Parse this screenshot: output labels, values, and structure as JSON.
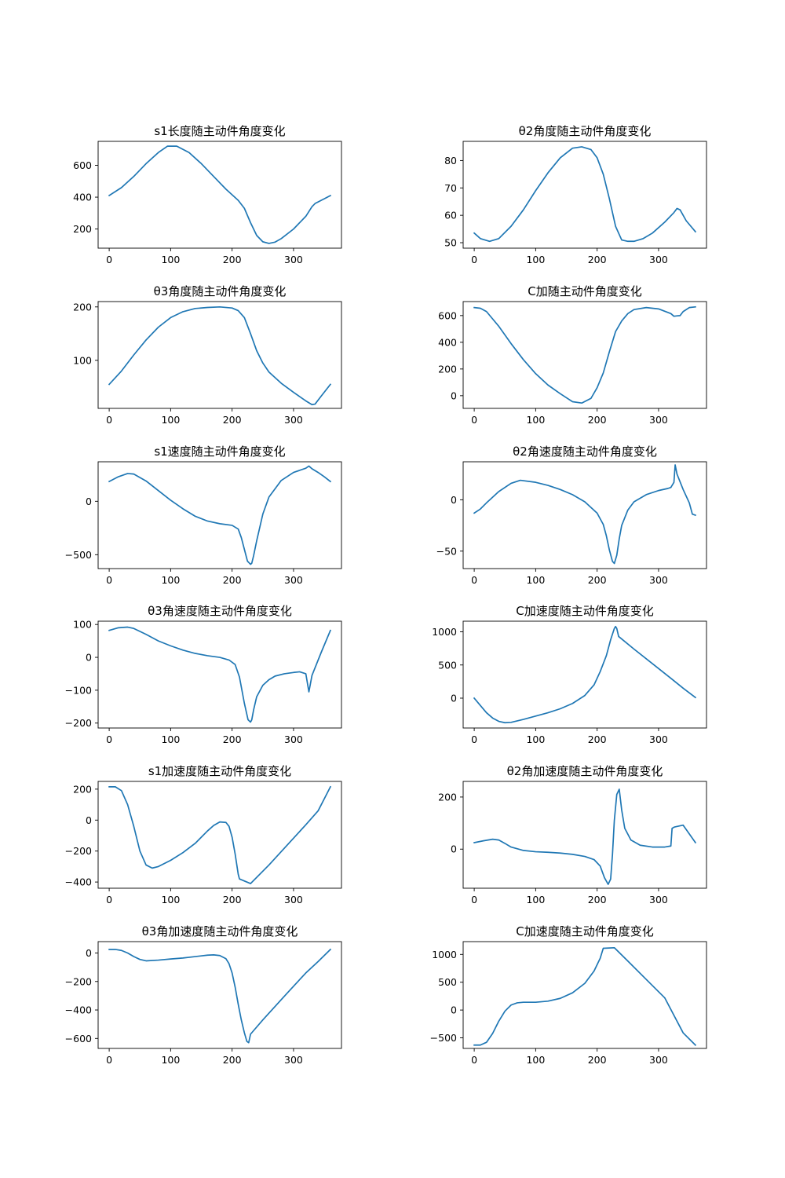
{
  "chart_data": [
    {
      "type": "line",
      "title": "s1长度随主动件角度变化",
      "xlim": [
        -18,
        378
      ],
      "ylim": [
        80,
        750
      ],
      "xticks": [
        0,
        100,
        200,
        300
      ],
      "yticks": [
        200,
        400,
        600
      ],
      "series": [
        {
          "x": [
            0,
            20,
            40,
            60,
            80,
            95,
            110,
            130,
            150,
            170,
            190,
            210,
            220,
            230,
            240,
            250,
            260,
            270,
            280,
            300,
            320,
            330,
            335,
            340,
            350,
            360
          ],
          "y": [
            410,
            460,
            530,
            610,
            680,
            720,
            720,
            680,
            610,
            530,
            450,
            380,
            330,
            240,
            160,
            120,
            110,
            118,
            140,
            200,
            280,
            340,
            360,
            370,
            390,
            410
          ]
        }
      ]
    },
    {
      "type": "line",
      "title": "θ2角度随主动件角度变化",
      "xlim": [
        -18,
        378
      ],
      "ylim": [
        48,
        87
      ],
      "xticks": [
        0,
        100,
        200,
        300
      ],
      "yticks": [
        50,
        60,
        70,
        80
      ],
      "series": [
        {
          "x": [
            0,
            10,
            25,
            40,
            60,
            80,
            100,
            120,
            140,
            160,
            175,
            190,
            200,
            210,
            220,
            230,
            240,
            250,
            260,
            275,
            290,
            310,
            325,
            330,
            335,
            345,
            360
          ],
          "y": [
            53.5,
            51.5,
            50.5,
            51.5,
            56,
            62,
            69,
            75.5,
            81,
            84.5,
            85,
            84,
            81,
            75,
            66,
            56,
            51,
            50.5,
            50.5,
            51.5,
            53.5,
            57.5,
            61,
            62.5,
            62,
            58,
            54
          ]
        }
      ]
    },
    {
      "type": "line",
      "title": "θ3角度随主动件角度变化",
      "xlim": [
        -18,
        378
      ],
      "ylim": [
        10,
        210
      ],
      "xticks": [
        0,
        100,
        200,
        300
      ],
      "yticks": [
        100,
        200
      ],
      "series": [
        {
          "x": [
            0,
            20,
            40,
            60,
            80,
            100,
            120,
            140,
            160,
            180,
            200,
            210,
            220,
            230,
            240,
            250,
            260,
            280,
            300,
            320,
            330,
            335,
            345,
            360
          ],
          "y": [
            55,
            80,
            110,
            138,
            162,
            180,
            191,
            197,
            199,
            200,
            198,
            193,
            180,
            150,
            118,
            95,
            78,
            57,
            40,
            24,
            17,
            18,
            33,
            55
          ]
        }
      ]
    },
    {
      "type": "line",
      "title": "C加随主动件角度变化",
      "xlim": [
        -18,
        378
      ],
      "ylim": [
        -95,
        705
      ],
      "xticks": [
        0,
        100,
        200,
        300
      ],
      "yticks": [
        0,
        200,
        400,
        600
      ],
      "series": [
        {
          "x": [
            0,
            10,
            20,
            40,
            60,
            80,
            100,
            120,
            140,
            160,
            175,
            190,
            200,
            210,
            220,
            230,
            240,
            250,
            260,
            280,
            300,
            320,
            325,
            330,
            335,
            340,
            350,
            360
          ],
          "y": [
            660,
            655,
            630,
            520,
            390,
            270,
            165,
            80,
            15,
            -45,
            -55,
            -20,
            60,
            170,
            330,
            480,
            560,
            615,
            645,
            660,
            650,
            615,
            595,
            598,
            600,
            630,
            660,
            665
          ]
        }
      ]
    },
    {
      "type": "line",
      "title": "s1速度随主动件角度变化",
      "xlim": [
        -18,
        378
      ],
      "ylim": [
        -630,
        370
      ],
      "xticks": [
        0,
        100,
        200,
        300
      ],
      "yticks": [
        -500,
        0
      ],
      "series": [
        {
          "x": [
            0,
            15,
            30,
            40,
            60,
            80,
            100,
            120,
            140,
            160,
            180,
            200,
            210,
            215,
            220,
            225,
            230,
            232,
            235,
            240,
            250,
            260,
            280,
            300,
            320,
            325,
            330,
            340,
            350,
            360
          ],
          "y": [
            185,
            230,
            260,
            255,
            190,
            100,
            10,
            -70,
            -140,
            -185,
            -210,
            -225,
            -260,
            -340,
            -450,
            -560,
            -590,
            -580,
            -510,
            -370,
            -120,
            40,
            195,
            270,
            310,
            330,
            305,
            270,
            230,
            185
          ]
        }
      ]
    },
    {
      "type": "line",
      "title": "θ2角速度随主动件角度变化",
      "xlim": [
        -18,
        378
      ],
      "ylim": [
        -67,
        37
      ],
      "xticks": [
        0,
        100,
        200,
        300
      ],
      "yticks": [
        -50,
        0
      ],
      "series": [
        {
          "x": [
            0,
            10,
            20,
            40,
            60,
            75,
            100,
            120,
            140,
            160,
            180,
            200,
            210,
            215,
            220,
            225,
            228,
            232,
            236,
            240,
            250,
            260,
            280,
            300,
            315,
            320,
            325,
            327,
            330,
            340,
            350,
            355,
            360
          ],
          "y": [
            -13,
            -9,
            -3,
            8,
            16,
            19,
            17,
            14,
            10,
            5,
            -2,
            -13,
            -24,
            -35,
            -49,
            -60,
            -62,
            -54,
            -38,
            -25,
            -10,
            -2,
            5,
            9,
            11,
            12,
            17,
            34,
            25,
            10,
            -3,
            -14,
            -15
          ]
        }
      ]
    },
    {
      "type": "line",
      "title": "θ3角速度随主动件角度变化",
      "xlim": [
        -18,
        378
      ],
      "ylim": [
        -215,
        110
      ],
      "xticks": [
        0,
        100,
        200,
        300
      ],
      "yticks": [
        -200,
        -100,
        0,
        100
      ],
      "series": [
        {
          "x": [
            0,
            15,
            30,
            40,
            60,
            80,
            100,
            120,
            140,
            160,
            180,
            195,
            205,
            212,
            220,
            226,
            230,
            232,
            235,
            240,
            250,
            260,
            270,
            285,
            300,
            310,
            320,
            325,
            330,
            345,
            360
          ],
          "y": [
            82,
            90,
            92,
            88,
            70,
            50,
            35,
            22,
            12,
            5,
            0,
            -8,
            -22,
            -60,
            -140,
            -190,
            -197,
            -190,
            -160,
            -120,
            -85,
            -68,
            -57,
            -50,
            -46,
            -44,
            -50,
            -105,
            -55,
            15,
            82
          ]
        }
      ]
    },
    {
      "type": "line",
      "title": "C加速度随主动件角度变化",
      "xlim": [
        -18,
        378
      ],
      "ylim": [
        -450,
        1160
      ],
      "xticks": [
        0,
        100,
        200,
        300
      ],
      "yticks": [
        0,
        500,
        1000
      ],
      "series": [
        {
          "x": [
            0,
            10,
            20,
            30,
            40,
            50,
            60,
            80,
            100,
            120,
            140,
            160,
            180,
            195,
            205,
            215,
            222,
            228,
            230,
            232,
            235,
            260,
            290,
            320,
            340,
            360
          ],
          "y": [
            0,
            -110,
            -220,
            -300,
            -350,
            -370,
            -365,
            -320,
            -270,
            -220,
            -160,
            -80,
            40,
            200,
            400,
            640,
            880,
            1050,
            1080,
            1050,
            930,
            740,
            520,
            300,
            150,
            10
          ]
        }
      ]
    },
    {
      "type": "line",
      "title": "s1加速度随主动件角度变化",
      "xlim": [
        -18,
        378
      ],
      "ylim": [
        -440,
        250
      ],
      "xticks": [
        0,
        100,
        200,
        300
      ],
      "yticks": [
        -400,
        -200,
        0,
        200
      ],
      "series": [
        {
          "x": [
            0,
            10,
            20,
            30,
            40,
            50,
            60,
            70,
            80,
            100,
            120,
            140,
            160,
            170,
            180,
            190,
            195,
            200,
            205,
            210,
            212,
            230,
            260,
            290,
            320,
            340,
            360
          ],
          "y": [
            215,
            215,
            190,
            100,
            -40,
            -200,
            -290,
            -310,
            -300,
            -260,
            -210,
            -150,
            -70,
            -35,
            -12,
            -15,
            -40,
            -110,
            -220,
            -350,
            -380,
            -410,
            -290,
            -160,
            -30,
            60,
            215
          ]
        }
      ]
    },
    {
      "type": "line",
      "title": "θ2角加速度随主动件角度变化",
      "xlim": [
        -18,
        378
      ],
      "ylim": [
        -150,
        260
      ],
      "xticks": [
        0,
        100,
        200,
        300
      ],
      "yticks": [
        0,
        200
      ],
      "series": [
        {
          "x": [
            0,
            15,
            30,
            40,
            50,
            60,
            80,
            100,
            120,
            140,
            160,
            180,
            195,
            205,
            212,
            218,
            222,
            225,
            228,
            232,
            236,
            240,
            245,
            255,
            270,
            290,
            310,
            320,
            322,
            326,
            340,
            360
          ],
          "y": [
            25,
            32,
            38,
            35,
            22,
            8,
            -5,
            -10,
            -12,
            -15,
            -20,
            -28,
            -40,
            -65,
            -110,
            -135,
            -115,
            -20,
            110,
            210,
            230,
            150,
            80,
            35,
            15,
            8,
            8,
            12,
            80,
            85,
            92,
            25
          ]
        }
      ]
    },
    {
      "type": "line",
      "title": "θ3角加速度随主动件角度变化",
      "xlim": [
        -18,
        378
      ],
      "ylim": [
        -670,
        80
      ],
      "xticks": [
        0,
        100,
        200,
        300
      ],
      "yticks": [
        -600,
        -400,
        -200,
        0
      ],
      "series": [
        {
          "x": [
            0,
            10,
            20,
            30,
            40,
            50,
            60,
            80,
            100,
            120,
            140,
            160,
            170,
            180,
            190,
            195,
            200,
            205,
            210,
            215,
            220,
            224,
            227,
            230,
            250,
            290,
            320,
            340,
            360
          ],
          "y": [
            25,
            25,
            18,
            0,
            -25,
            -45,
            -55,
            -50,
            -42,
            -35,
            -25,
            -15,
            -13,
            -18,
            -40,
            -75,
            -140,
            -240,
            -360,
            -470,
            -560,
            -620,
            -630,
            -570,
            -470,
            -280,
            -140,
            -60,
            25
          ]
        }
      ]
    },
    {
      "type": "line",
      "title": "C加速度随主动件角度变化",
      "xlim": [
        -18,
        378
      ],
      "ylim": [
        -690,
        1230
      ],
      "xticks": [
        0,
        100,
        200,
        300
      ],
      "yticks": [
        -500,
        0,
        500,
        1000
      ],
      "series": [
        {
          "x": [
            0,
            10,
            20,
            30,
            40,
            50,
            60,
            70,
            80,
            100,
            120,
            140,
            160,
            180,
            195,
            205,
            210,
            228,
            250,
            280,
            310,
            340,
            360
          ],
          "y": [
            -630,
            -630,
            -580,
            -420,
            -200,
            -20,
            90,
            130,
            140,
            140,
            160,
            210,
            310,
            480,
            700,
            930,
            1110,
            1120,
            880,
            550,
            220,
            -410,
            -630
          ]
        }
      ]
    }
  ]
}
